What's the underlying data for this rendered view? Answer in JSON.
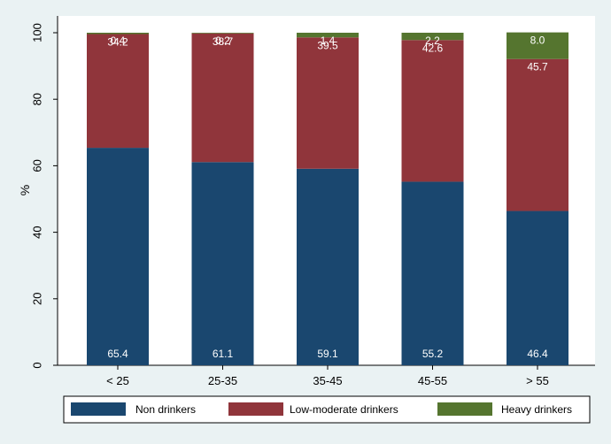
{
  "chart_data": {
    "type": "bar",
    "stacked": true,
    "title": "",
    "xlabel": "",
    "ylabel": "%",
    "ylim": [
      0,
      100
    ],
    "yticks": [
      0,
      20,
      40,
      60,
      80,
      100
    ],
    "grid": false,
    "legend_position": "bottom",
    "categories": [
      "< 25",
      "25-35",
      "35-45",
      "45-55",
      "> 55"
    ],
    "series": [
      {
        "name": "Non drinkers",
        "color": "#1A476F",
        "values": [
          65.4,
          61.1,
          59.1,
          55.2,
          46.4
        ],
        "labels": [
          "65.4",
          "61.1",
          "59.1",
          "55.2",
          "46.4"
        ]
      },
      {
        "name": "Low-moderate drinkers",
        "color": "#90353B",
        "values": [
          34.2,
          38.7,
          39.5,
          42.6,
          45.7
        ],
        "labels": [
          "34.2",
          "38.7",
          "39.5",
          "42.6",
          "45.7"
        ]
      },
      {
        "name": "Heavy drinkers",
        "color": "#55752F",
        "values": [
          0.4,
          0.2,
          1.4,
          2.2,
          8.0
        ],
        "labels": [
          "0.4",
          "0.2",
          "1.4",
          "2.2",
          "8.0"
        ]
      }
    ]
  }
}
